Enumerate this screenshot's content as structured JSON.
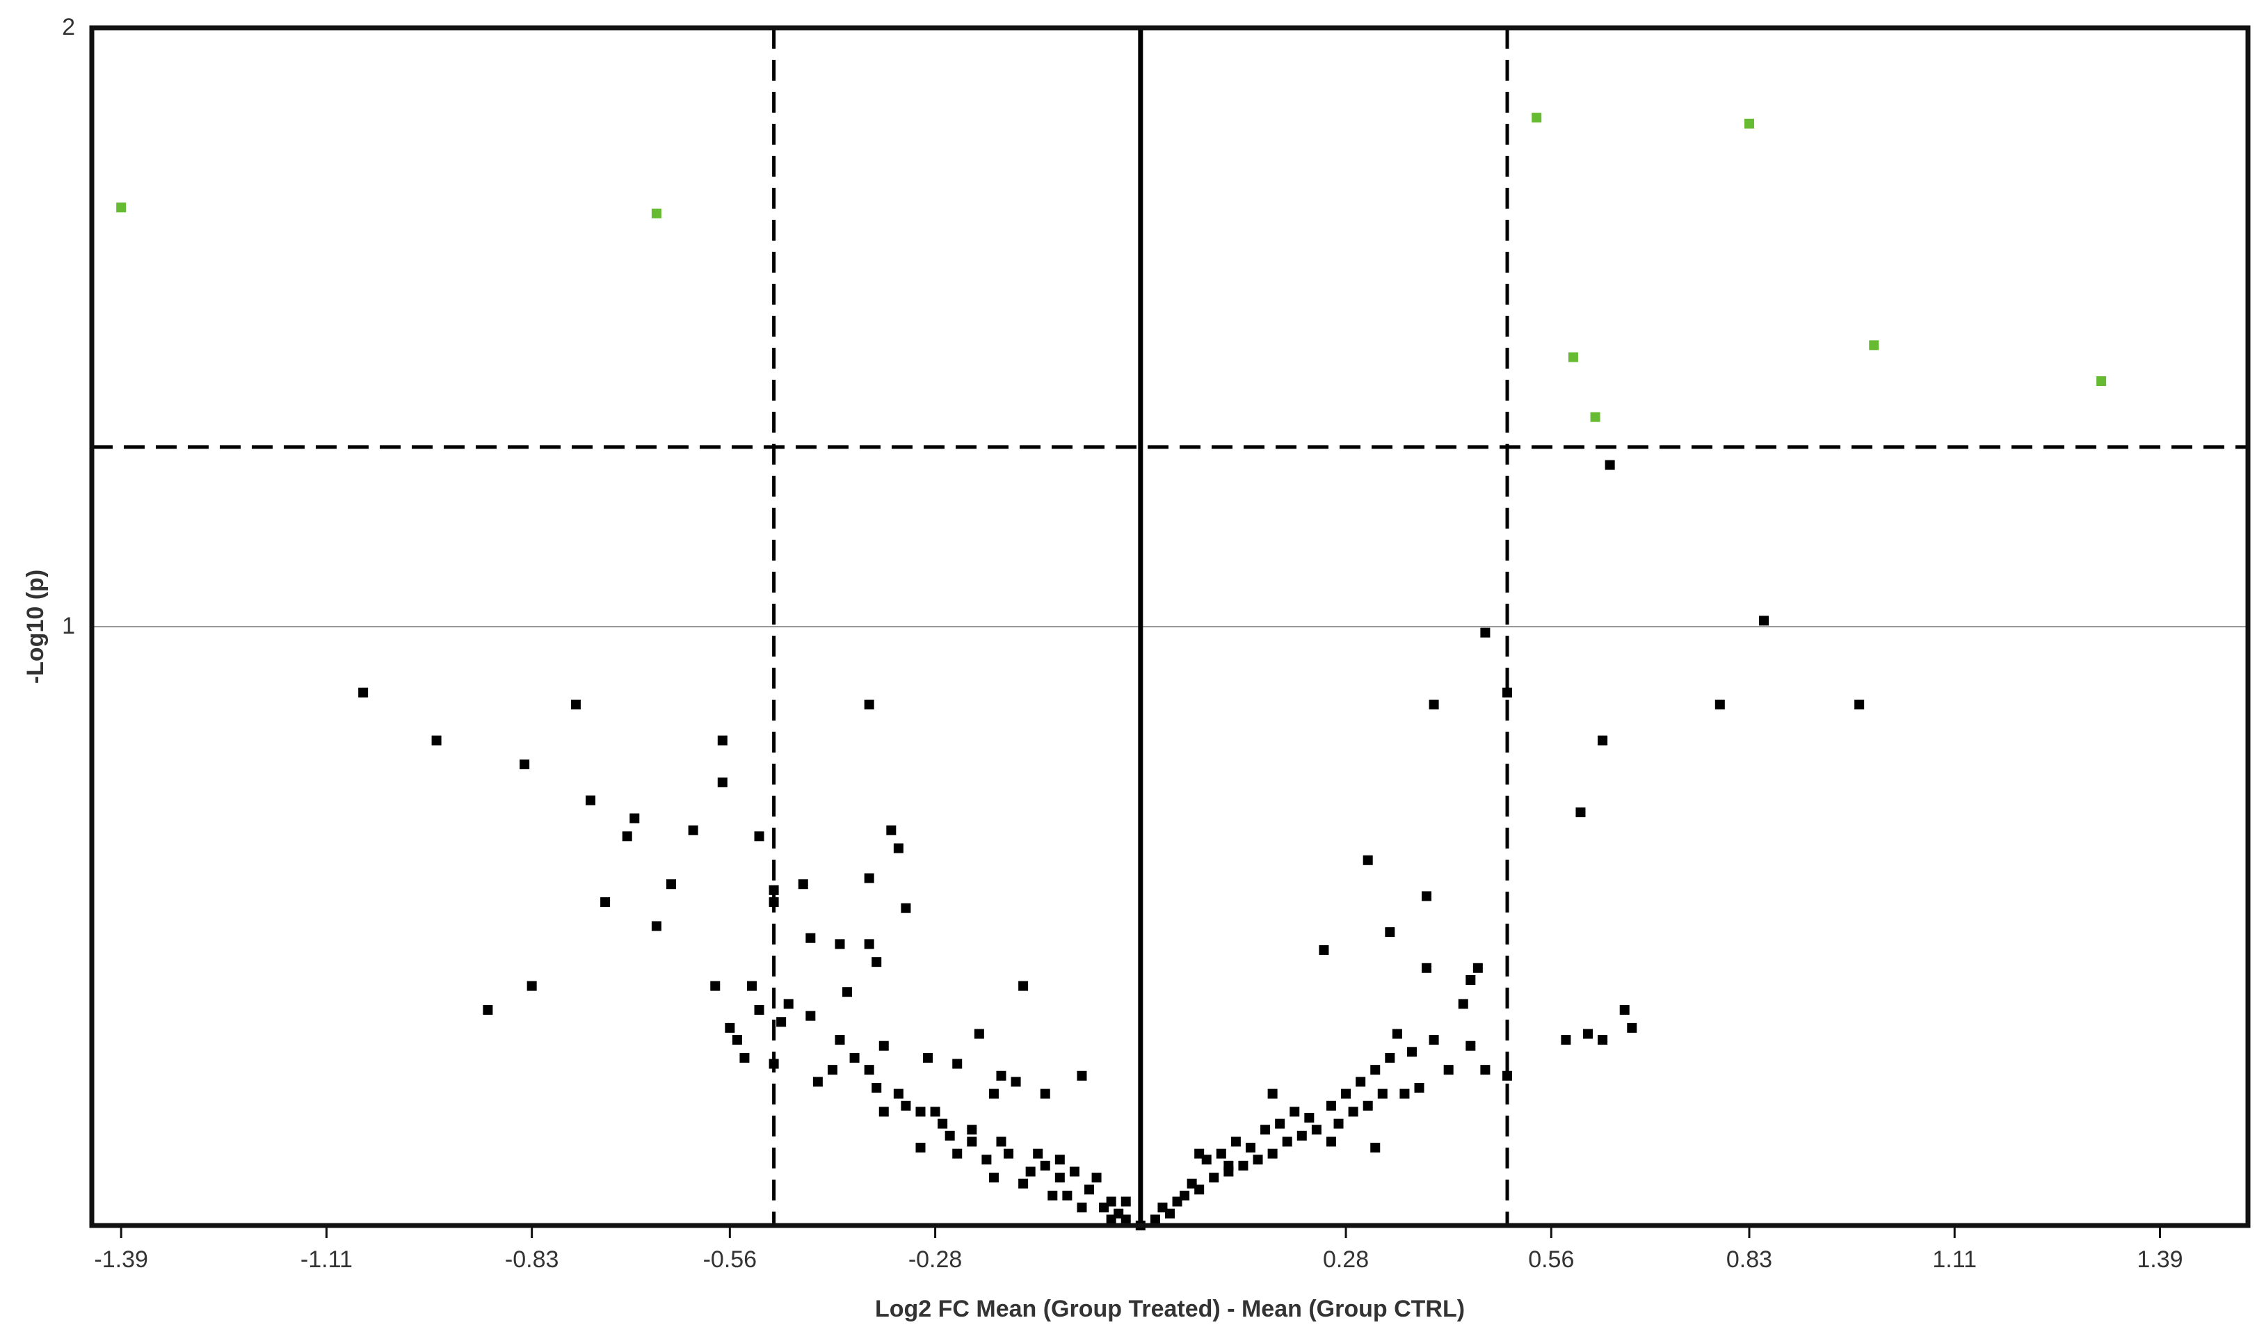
{
  "chart_data": {
    "type": "scatter",
    "title": "",
    "xlabel": "Log2 FC Mean (Group Treated) - Mean (Group CTRL)",
    "ylabel": "-Log10 (p)",
    "xlim": [
      -1.43,
      1.51
    ],
    "ylim": [
      0,
      2
    ],
    "x_ticks": [
      -1.39,
      -1.11,
      -0.83,
      -0.56,
      -0.28,
      0.28,
      0.56,
      0.83,
      1.11,
      1.39
    ],
    "x_tick_labels": [
      "-1.39",
      "-1.11",
      "-0.83",
      "-0.56",
      "-0.28",
      "0.28",
      "0.56",
      "0.83",
      "1.11",
      "1.39"
    ],
    "y_ticks": [
      1,
      2
    ],
    "y_tick_labels": [
      "1",
      "2"
    ],
    "grid": "horizontal",
    "fold_change_thresholds": [
      -0.5,
      0.5
    ],
    "p_threshold": 1.3,
    "zero_line": 0,
    "colors": {
      "significant": "#66bb33",
      "non_significant": "#000000",
      "threshold_line": "#000000",
      "grid": "#999999",
      "frame": "#111111"
    },
    "series": [
      {
        "values": [
          [
            -1.39,
            1.7
          ],
          [
            -0.66,
            1.69
          ],
          [
            0.54,
            1.85
          ],
          [
            0.83,
            1.84
          ],
          [
            0.59,
            1.45
          ],
          [
            1.0,
            1.47
          ],
          [
            1.31,
            1.41
          ],
          [
            0.62,
            1.35
          ]
        ]
      },
      {
        "values": [
          [
            0.64,
            1.27
          ],
          [
            0.85,
            1.01
          ],
          [
            0.47,
            0.99
          ],
          [
            0.5,
            0.89
          ],
          [
            0.4,
            0.87
          ],
          [
            0.79,
            0.87
          ],
          [
            0.98,
            0.87
          ],
          [
            -1.06,
            0.89
          ],
          [
            -0.96,
            0.81
          ],
          [
            -0.84,
            0.77
          ],
          [
            -0.77,
            0.87
          ],
          [
            -0.37,
            0.87
          ],
          [
            -0.75,
            0.71
          ],
          [
            -0.57,
            0.81
          ],
          [
            -0.57,
            0.74
          ],
          [
            -0.69,
            0.68
          ],
          [
            -0.61,
            0.66
          ],
          [
            -0.52,
            0.65
          ],
          [
            -0.7,
            0.65
          ],
          [
            -0.64,
            0.57
          ],
          [
            -0.66,
            0.5
          ],
          [
            -0.73,
            0.54
          ],
          [
            -0.89,
            0.36
          ],
          [
            -0.83,
            0.4
          ],
          [
            0.63,
            0.81
          ],
          [
            0.6,
            0.69
          ],
          [
            0.31,
            0.61
          ],
          [
            0.39,
            0.55
          ],
          [
            0.25,
            0.46
          ],
          [
            0.34,
            0.49
          ],
          [
            0.39,
            0.43
          ],
          [
            0.45,
            0.41
          ],
          [
            0.46,
            0.43
          ],
          [
            0.66,
            0.36
          ],
          [
            0.67,
            0.33
          ],
          [
            0.58,
            0.31
          ],
          [
            0.61,
            0.32
          ],
          [
            0.63,
            0.31
          ],
          [
            0.45,
            0.3
          ],
          [
            0.5,
            0.25
          ],
          [
            -0.34,
            0.66
          ],
          [
            -0.33,
            0.63
          ],
          [
            -0.37,
            0.58
          ],
          [
            -0.46,
            0.57
          ],
          [
            -0.5,
            0.56
          ],
          [
            -0.5,
            0.54
          ],
          [
            -0.45,
            0.48
          ],
          [
            -0.41,
            0.47
          ],
          [
            -0.37,
            0.47
          ],
          [
            -0.32,
            0.53
          ],
          [
            -0.36,
            0.44
          ],
          [
            -0.16,
            0.4
          ],
          [
            -0.53,
            0.4
          ],
          [
            -0.52,
            0.36
          ],
          [
            -0.48,
            0.37
          ],
          [
            -0.45,
            0.35
          ],
          [
            -0.4,
            0.39
          ],
          [
            -0.22,
            0.32
          ],
          [
            -0.41,
            0.31
          ],
          [
            -0.35,
            0.3
          ],
          [
            -0.29,
            0.28
          ],
          [
            -0.25,
            0.27
          ],
          [
            -0.19,
            0.25
          ],
          [
            -0.2,
            0.22
          ],
          [
            -0.17,
            0.24
          ],
          [
            -0.13,
            0.22
          ],
          [
            -0.08,
            0.25
          ],
          [
            -0.11,
            0.11
          ],
          [
            -0.06,
            0.08
          ],
          [
            -0.04,
            0.04
          ],
          [
            -0.56,
            0.33
          ],
          [
            -0.55,
            0.31
          ],
          [
            -0.54,
            0.28
          ],
          [
            -0.5,
            0.27
          ],
          [
            -0.44,
            0.24
          ],
          [
            -0.37,
            0.26
          ],
          [
            -0.33,
            0.22
          ],
          [
            -0.3,
            0.19
          ],
          [
            -0.27,
            0.17
          ],
          [
            -0.23,
            0.16
          ],
          [
            -0.19,
            0.14
          ],
          [
            -0.14,
            0.12
          ],
          [
            -0.11,
            0.08
          ],
          [
            -0.07,
            0.06
          ],
          [
            -0.03,
            0.02
          ],
          [
            -0.58,
            0.4
          ],
          [
            -0.49,
            0.34
          ],
          [
            -0.42,
            0.26
          ],
          [
            -0.36,
            0.23
          ],
          [
            -0.32,
            0.2
          ],
          [
            -0.26,
            0.15
          ],
          [
            -0.21,
            0.11
          ],
          [
            -0.15,
            0.09
          ],
          [
            -0.1,
            0.05
          ],
          [
            -0.05,
            0.03
          ],
          [
            -0.02,
            0.01
          ],
          [
            0.0,
            0.0
          ],
          [
            -0.39,
            0.28
          ],
          [
            -0.35,
            0.19
          ],
          [
            -0.3,
            0.13
          ],
          [
            -0.25,
            0.12
          ],
          [
            -0.2,
            0.08
          ],
          [
            -0.16,
            0.07
          ],
          [
            -0.12,
            0.05
          ],
          [
            -0.08,
            0.03
          ],
          [
            -0.04,
            0.01
          ],
          [
            -0.28,
            0.19
          ],
          [
            -0.23,
            0.14
          ],
          [
            -0.18,
            0.12
          ],
          [
            -0.13,
            0.1
          ],
          [
            -0.09,
            0.09
          ],
          [
            -0.02,
            0.04
          ],
          [
            0.02,
            0.01
          ],
          [
            0.04,
            0.02
          ],
          [
            0.06,
            0.05
          ],
          [
            0.08,
            0.06
          ],
          [
            0.1,
            0.08
          ],
          [
            0.12,
            0.09
          ],
          [
            0.14,
            0.1
          ],
          [
            0.16,
            0.11
          ],
          [
            0.18,
            0.12
          ],
          [
            0.2,
            0.14
          ],
          [
            0.22,
            0.15
          ],
          [
            0.24,
            0.16
          ],
          [
            0.27,
            0.17
          ],
          [
            0.29,
            0.19
          ],
          [
            0.31,
            0.2
          ],
          [
            0.33,
            0.22
          ],
          [
            0.36,
            0.22
          ],
          [
            0.38,
            0.23
          ],
          [
            0.03,
            0.03
          ],
          [
            0.05,
            0.04
          ],
          [
            0.07,
            0.07
          ],
          [
            0.09,
            0.11
          ],
          [
            0.11,
            0.12
          ],
          [
            0.13,
            0.14
          ],
          [
            0.15,
            0.13
          ],
          [
            0.17,
            0.16
          ],
          [
            0.19,
            0.17
          ],
          [
            0.21,
            0.19
          ],
          [
            0.23,
            0.18
          ],
          [
            0.26,
            0.2
          ],
          [
            0.28,
            0.22
          ],
          [
            0.3,
            0.24
          ],
          [
            0.32,
            0.26
          ],
          [
            0.34,
            0.28
          ],
          [
            0.37,
            0.29
          ],
          [
            0.4,
            0.31
          ],
          [
            0.08,
            0.12
          ],
          [
            0.12,
            0.1
          ],
          [
            0.18,
            0.22
          ],
          [
            0.26,
            0.14
          ],
          [
            0.35,
            0.32
          ],
          [
            0.42,
            0.26
          ],
          [
            0.44,
            0.37
          ],
          [
            0.47,
            0.26
          ],
          [
            0.32,
            0.13
          ]
        ]
      }
    ]
  }
}
